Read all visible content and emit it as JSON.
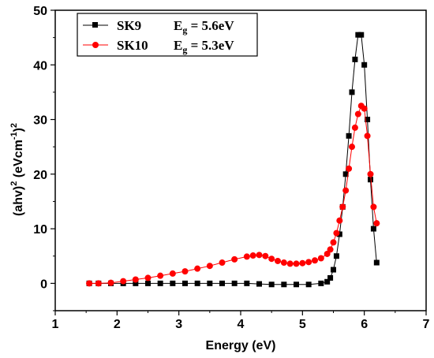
{
  "chart_data": {
    "type": "scatter",
    "xlabel": "Energy (eV)",
    "ylabel_main": "(ahv)",
    "ylabel_sup1": "2",
    "ylabel_unit": " (eVcm",
    "ylabel_sup2": "-1",
    "ylabel_close": ")",
    "ylabel_sup3": "2",
    "xlim": [
      1,
      7
    ],
    "ylim": [
      -5,
      50
    ],
    "xticks": [
      1,
      2,
      3,
      4,
      5,
      6,
      7
    ],
    "yticks": [
      0,
      10,
      20,
      30,
      40,
      50
    ],
    "grid": false,
    "legend_position": "top-left",
    "series": [
      {
        "name": "SK9",
        "eg_label": "E",
        "eg_sub": "g",
        "eg_value": " = 5.6eV",
        "color": "#000000",
        "marker": "square",
        "x": [
          1.55,
          1.7,
          1.9,
          2.1,
          2.3,
          2.5,
          2.7,
          2.9,
          3.1,
          3.3,
          3.5,
          3.7,
          3.9,
          4.1,
          4.3,
          4.5,
          4.7,
          4.9,
          5.1,
          5.3,
          5.4,
          5.45,
          5.5,
          5.55,
          5.6,
          5.65,
          5.7,
          5.75,
          5.8,
          5.85,
          5.9,
          5.95,
          6.0,
          6.05,
          6.1,
          6.15,
          6.2
        ],
        "y": [
          0,
          0,
          0,
          0,
          0,
          0,
          0,
          0,
          0,
          0,
          0,
          0,
          0,
          0,
          -0.1,
          -0.2,
          -0.2,
          -0.2,
          -0.2,
          0,
          0.3,
          1,
          2.5,
          5,
          9,
          14,
          20,
          27,
          35,
          41,
          45.5,
          45.5,
          40,
          30,
          19,
          10,
          3.8
        ]
      },
      {
        "name": "SK10",
        "eg_label": "E",
        "eg_sub": "g",
        "eg_value": " = 5.3eV",
        "color": "#ff0000",
        "marker": "circle",
        "x": [
          1.55,
          1.7,
          1.9,
          2.1,
          2.3,
          2.5,
          2.7,
          2.9,
          3.1,
          3.3,
          3.5,
          3.7,
          3.9,
          4.1,
          4.2,
          4.3,
          4.4,
          4.5,
          4.6,
          4.7,
          4.8,
          4.9,
          5.0,
          5.1,
          5.2,
          5.3,
          5.4,
          5.45,
          5.5,
          5.55,
          5.6,
          5.65,
          5.7,
          5.75,
          5.8,
          5.85,
          5.9,
          5.95,
          6.0,
          6.05,
          6.1,
          6.15,
          6.2
        ],
        "y": [
          0,
          0,
          0.1,
          0.4,
          0.7,
          1.0,
          1.4,
          1.8,
          2.2,
          2.7,
          3.2,
          3.8,
          4.4,
          4.9,
          5.1,
          5.2,
          5.0,
          4.5,
          4.1,
          3.8,
          3.6,
          3.6,
          3.7,
          3.9,
          4.2,
          4.6,
          5.4,
          6.2,
          7.5,
          9.2,
          11.5,
          14,
          17,
          21,
          25,
          28.5,
          31,
          32.5,
          32,
          27,
          20,
          14,
          11
        ]
      }
    ]
  }
}
